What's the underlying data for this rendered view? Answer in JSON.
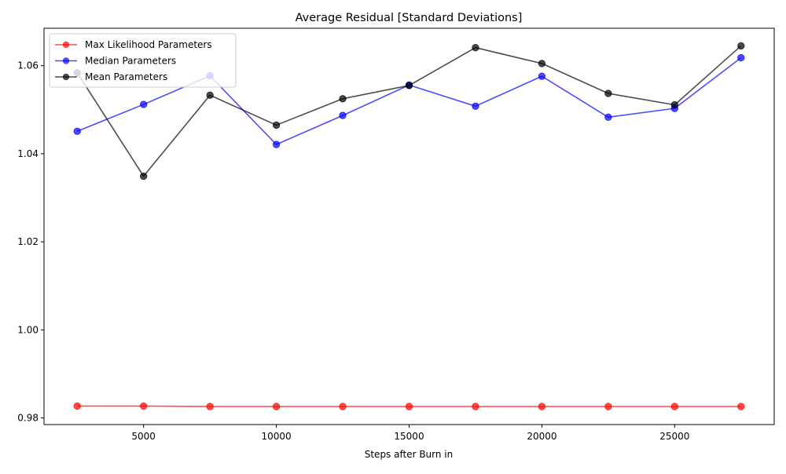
{
  "chart_data": {
    "type": "line",
    "title": "Average Residual [Standard Deviations]",
    "xlabel": "Steps after Burn in",
    "ylabel": "",
    "x": [
      2500,
      5000,
      7500,
      10000,
      12500,
      15000,
      17500,
      20000,
      22500,
      25000,
      27500
    ],
    "xlim": [
      1250,
      28750
    ],
    "ylim": [
      0.9785,
      1.0685
    ],
    "xticks": [
      5000,
      10000,
      15000,
      20000,
      25000
    ],
    "xtick_labels": [
      "5000",
      "10000",
      "15000",
      "20000",
      "25000"
    ],
    "yticks": [
      0.98,
      1.0,
      1.02,
      1.04,
      1.06
    ],
    "ytick_labels": [
      "0.98",
      "1.00",
      "1.02",
      "1.04",
      "1.06"
    ],
    "grid": false,
    "legend_position": "top-left",
    "series": [
      {
        "name": "Max Likelihood Parameters",
        "color": "#ff0000",
        "values": [
          0.9827,
          0.9827,
          0.9826,
          0.9826,
          0.9826,
          0.9826,
          0.9826,
          0.9826,
          0.9826,
          0.9826,
          0.9826
        ]
      },
      {
        "name": "Median Parameters",
        "color": "#0000ff",
        "values": [
          1.0451,
          1.0512,
          1.0577,
          1.0421,
          1.0487,
          1.0556,
          1.0508,
          1.0576,
          1.0483,
          1.0503,
          1.0618
        ]
      },
      {
        "name": "Mean Parameters",
        "color": "#000000",
        "values": [
          1.0584,
          1.0349,
          1.0533,
          1.0465,
          1.0525,
          1.0555,
          1.0641,
          1.0605,
          1.0537,
          1.0511,
          1.0645
        ]
      }
    ]
  }
}
